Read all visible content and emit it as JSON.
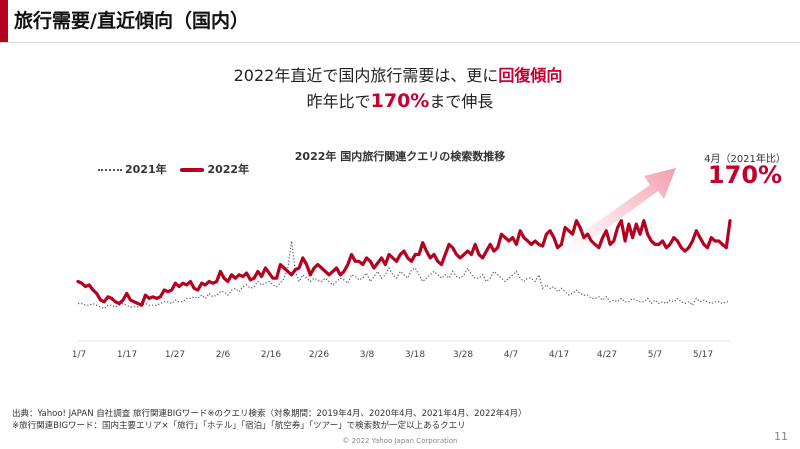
{
  "slide": {
    "title": "旅行需要/直近傾向（国内）",
    "headline1": {
      "a": "2022年直近で国内旅行需要は、更に",
      "b": "回復傾向"
    },
    "headline2": {
      "a": "昨年比で",
      "b": "170%",
      "c": "まで伸長"
    },
    "footer1": "出典：Yahoo! JAPAN 自社調査 旅行関連BIGワード※のクエリ検索（対象期間：2019年4月、2020年4月、2021年4月、2022年4月）",
    "footer2": "※旅行関連BIGワード：国内主要エリア×「旅行」「ホテル」「宿泊」「航空券」「ツアー」で検索数が一定以上あるクエリ",
    "copyright": "© 2022 Yahoo Japan Corporation",
    "page_number": "11"
  },
  "colors": {
    "accent": "#b5001f",
    "series_2022": "#b5001f",
    "series_2021": "#555555",
    "arrow": "#f6b6c0"
  },
  "chart_data": {
    "type": "line",
    "title": "2022年 国内旅行関連クエリの検索数推移",
    "callout": {
      "label": "4月（2021年比）",
      "value": "170%"
    },
    "x_tick_labels": [
      "1/7",
      "1/17",
      "1/27",
      "2/6",
      "2/16",
      "2/26",
      "3/8",
      "3/18",
      "3/28",
      "4/7",
      "4/17",
      "4/27",
      "5/7",
      "5/17"
    ],
    "legend_position": "top-left",
    "grid": false,
    "y_axis_labels": false,
    "ylim": [
      0,
      100
    ],
    "series": [
      {
        "name": "2022年",
        "style": "solid",
        "values": [
          34,
          33,
          31,
          32,
          29,
          27,
          23,
          22,
          25,
          24,
          22,
          21,
          23,
          27,
          23,
          22,
          21,
          20,
          26,
          24,
          25,
          24,
          25,
          29,
          28,
          29,
          33,
          31,
          33,
          32,
          34,
          30,
          29,
          33,
          32,
          34,
          33,
          34,
          40,
          36,
          34,
          38,
          36,
          38,
          37,
          39,
          35,
          36,
          40,
          37,
          42,
          39,
          36,
          36,
          44,
          42,
          40,
          38,
          41,
          42,
          48,
          44,
          38,
          42,
          44,
          42,
          40,
          38,
          40,
          42,
          38,
          40,
          44,
          50,
          46,
          46,
          44,
          48,
          46,
          42,
          45,
          48,
          44,
          50,
          48,
          46,
          50,
          52,
          48,
          46,
          50,
          50,
          57,
          52,
          48,
          50,
          46,
          44,
          50,
          56,
          54,
          50,
          48,
          50,
          52,
          50,
          56,
          50,
          48,
          52,
          56,
          52,
          54,
          62,
          60,
          58,
          60,
          56,
          64,
          60,
          58,
          56,
          58,
          56,
          55,
          62,
          64,
          60,
          54,
          56,
          66,
          64,
          62,
          70,
          66,
          60,
          62,
          58,
          56,
          54,
          60,
          64,
          56,
          58,
          66,
          70,
          58,
          68,
          60,
          68,
          62,
          70,
          62,
          58,
          56,
          56,
          58,
          54,
          56,
          60,
          58,
          54,
          52,
          54,
          58,
          64,
          60,
          56,
          54,
          60,
          58,
          58,
          56,
          54,
          70
        ]
      },
      {
        "name": "2021年",
        "style": "dotted",
        "values": [
          21,
          21,
          20,
          20,
          21,
          20,
          19,
          18,
          20,
          20,
          19,
          20,
          21,
          20,
          19,
          19,
          19,
          20,
          21,
          20,
          20,
          20,
          21,
          22,
          22,
          21,
          23,
          22,
          22,
          24,
          24,
          25,
          24,
          26,
          24,
          27,
          25,
          26,
          28,
          28,
          26,
          29,
          30,
          28,
          31,
          32,
          30,
          31,
          34,
          32,
          33,
          34,
          32,
          31,
          33,
          36,
          42,
          58,
          40,
          34,
          38,
          36,
          34,
          36,
          35,
          34,
          36,
          34,
          32,
          34,
          36,
          35,
          33,
          38,
          37,
          35,
          36,
          39,
          34,
          37,
          40,
          36,
          38,
          42,
          38,
          36,
          40,
          38,
          36,
          41,
          42,
          38,
          34,
          36,
          38,
          40,
          38,
          36,
          38,
          36,
          40,
          37,
          36,
          38,
          42,
          38,
          36,
          36,
          38,
          34,
          36,
          40,
          38,
          36,
          34,
          36,
          38,
          40,
          36,
          34,
          36,
          36,
          34,
          38,
          30,
          32,
          30,
          31,
          28,
          30,
          28,
          26,
          27,
          29,
          27,
          26,
          26,
          24,
          24,
          25,
          23,
          25,
          22,
          23,
          22,
          24,
          22,
          22,
          24,
          23,
          22,
          22,
          24,
          21,
          23,
          21,
          22,
          21,
          23,
          22,
          24,
          22,
          21,
          22,
          20,
          24,
          22,
          23,
          22,
          21,
          22,
          22,
          21,
          22,
          22
        ]
      }
    ]
  }
}
